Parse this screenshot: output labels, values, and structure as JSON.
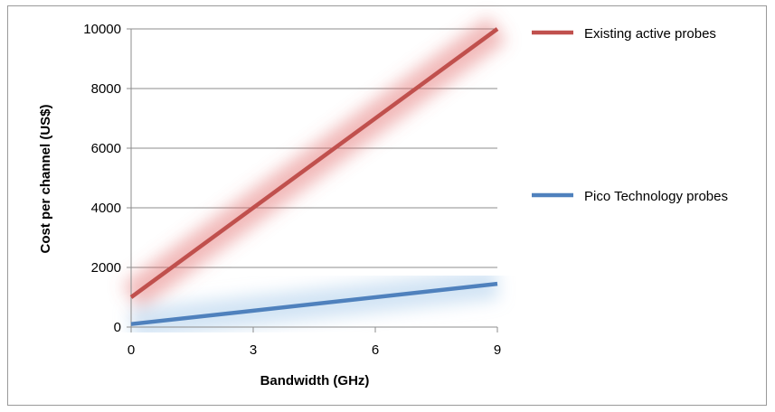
{
  "chart_data": {
    "type": "line",
    "title": "",
    "xlabel": "Bandwidth (GHz)",
    "ylabel": "Cost per channel (US$)",
    "xlim": [
      0,
      9
    ],
    "ylim": [
      0,
      10000
    ],
    "x_ticks": [
      "0",
      "3",
      "6",
      "9"
    ],
    "y_ticks": [
      "0",
      "2000",
      "4000",
      "6000",
      "8000",
      "10000"
    ],
    "grid": "horizontal",
    "legend_position": "right",
    "series": [
      {
        "name": "Existing active probes",
        "color": "#C0504D",
        "glow_color": "#E06666",
        "x": [
          0,
          9
        ],
        "y": [
          1000,
          10000
        ]
      },
      {
        "name": "Pico Technology probes",
        "color": "#4F81BD",
        "glow_color": "#9CC3E6",
        "x": [
          0,
          9
        ],
        "y": [
          100,
          1450
        ]
      }
    ]
  }
}
